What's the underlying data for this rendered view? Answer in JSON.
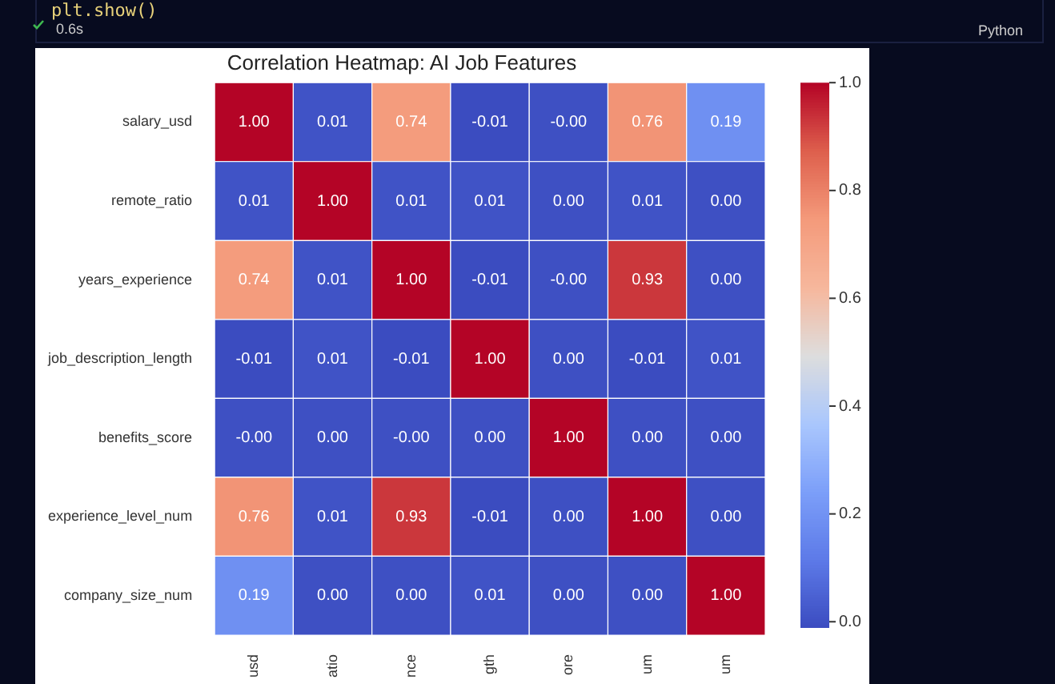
{
  "chart_data": {
    "type": "heatmap",
    "title": "Correlation Heatmap: AI Job Features",
    "categories": [
      "usd",
      "atio",
      "nce",
      "gth",
      "ore",
      "um",
      "um"
    ],
    "y_categories": [
      "salary_usd",
      "remote_ratio",
      "years_experience",
      "job_description_length",
      "benefits_score",
      "experience_level_num",
      "company_size_num"
    ],
    "cells": [
      [
        1.0,
        0.01,
        0.74,
        -0.01,
        -0.0,
        0.76,
        0.19
      ],
      [
        0.01,
        1.0,
        0.01,
        0.01,
        0.0,
        0.01,
        0.0
      ],
      [
        0.74,
        0.01,
        1.0,
        -0.01,
        -0.0,
        0.93,
        0.0
      ],
      [
        -0.01,
        0.01,
        -0.01,
        1.0,
        0.0,
        -0.01,
        0.01
      ],
      [
        -0.0,
        0.0,
        -0.0,
        0.0,
        1.0,
        0.0,
        0.0
      ],
      [
        0.76,
        0.01,
        0.93,
        -0.01,
        0.0,
        1.0,
        0.0
      ],
      [
        0.19,
        0.0,
        0.0,
        0.01,
        0.0,
        0.0,
        1.0
      ]
    ],
    "cell_labels": [
      [
        "1.00",
        "0.01",
        "0.74",
        "-0.01",
        "-0.00",
        "0.76",
        "0.19"
      ],
      [
        "0.01",
        "1.00",
        "0.01",
        "0.01",
        "0.00",
        "0.01",
        "0.00"
      ],
      [
        "0.74",
        "0.01",
        "1.00",
        "-0.01",
        "-0.00",
        "0.93",
        "0.00"
      ],
      [
        "-0.01",
        "0.01",
        "-0.01",
        "1.00",
        "0.00",
        "-0.01",
        "0.01"
      ],
      [
        "-0.00",
        "0.00",
        "-0.00",
        "0.00",
        "1.00",
        "0.00",
        "0.00"
      ],
      [
        "0.76",
        "0.01",
        "0.93",
        "-0.01",
        "0.00",
        "1.00",
        "0.00"
      ],
      [
        "0.19",
        "0.00",
        "0.00",
        "0.01",
        "0.00",
        "0.00",
        "1.00"
      ]
    ],
    "clim": [
      -0.01,
      1.0
    ],
    "cticks": [
      {
        "value": 0,
        "label": "0.0"
      },
      {
        "value": 0.2,
        "label": "0.2"
      },
      {
        "value": 0.4,
        "label": "0.4"
      },
      {
        "value": 0.6,
        "label": "0.6"
      },
      {
        "value": 0.8,
        "label": "0.8"
      },
      {
        "value": 1,
        "label": "1.0"
      }
    ],
    "annotations": [
      "plt.show()",
      "0.6s",
      "Python"
    ]
  }
}
